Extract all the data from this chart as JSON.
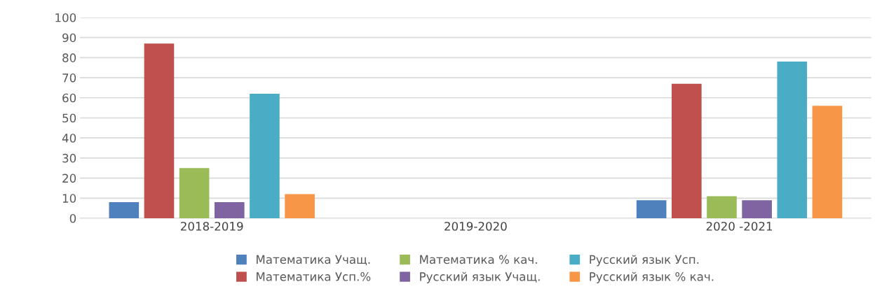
{
  "chart_data": {
    "type": "bar",
    "categories": [
      "2018-2019",
      "2019-2020",
      "2020 -2021"
    ],
    "series": [
      {
        "name": "Математика Учащ.",
        "color": "#4f81bd",
        "values": [
          8,
          null,
          9
        ]
      },
      {
        "name": "Математика Усп.%",
        "color": "#c0504d",
        "values": [
          87,
          null,
          67
        ]
      },
      {
        "name": "Математика % кач.",
        "color": "#9bbb59",
        "values": [
          25,
          null,
          11
        ]
      },
      {
        "name": "Русский язык Учащ.",
        "color": "#8064a2",
        "values": [
          8,
          null,
          9
        ]
      },
      {
        "name": "Русский язык Усп.",
        "color": "#4bacc6",
        "values": [
          62,
          null,
          78
        ]
      },
      {
        "name": "Русский язык % кач.",
        "color": "#f79646",
        "values": [
          12,
          null,
          56
        ]
      }
    ],
    "ylim": [
      0,
      100
    ],
    "yticks": [
      0,
      10,
      20,
      30,
      40,
      50,
      60,
      70,
      80,
      90,
      100
    ],
    "grid": "y",
    "legend": "bottom"
  }
}
